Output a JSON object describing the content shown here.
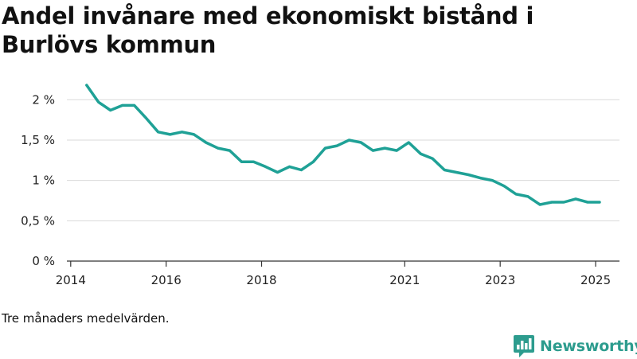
{
  "title": "Andel invånare med ekonomiskt bistånd i Burlövs kommun",
  "footnote": "Tre månaders medelvärden.",
  "brand": {
    "name": "Newsworthy",
    "icon": "bar-chart-logo-icon",
    "color": "#2d9c8e"
  },
  "chart_data": {
    "type": "line",
    "xlabel": "",
    "ylabel": "",
    "ylim": [
      0,
      2.2
    ],
    "y_ticks": [
      0,
      0.5,
      1,
      1.5,
      2
    ],
    "y_tick_labels": [
      "0 %",
      "0,5 %",
      "1 %",
      "1,5 %",
      "2 %"
    ],
    "x_ticks": [
      2014,
      2016,
      2018,
      2021,
      2023,
      2025
    ],
    "x_tick_labels": [
      "2014",
      "2016",
      "2018",
      "2021",
      "2023",
      "2025"
    ],
    "grid": true,
    "line_color": "#1fa196",
    "series": [
      {
        "x": [
          2014.333,
          2014.583,
          2014.833,
          2015.083,
          2015.333,
          2015.583,
          2015.833,
          2016.083,
          2016.333,
          2016.583,
          2016.833,
          2017.083,
          2017.333,
          2017.583,
          2017.833,
          2018.083,
          2018.333,
          2018.583,
          2018.833,
          2019.083,
          2019.333,
          2019.583,
          2019.833,
          2020.083,
          2020.333,
          2020.583,
          2020.833,
          2021.083,
          2021.333,
          2021.583,
          2021.833,
          2022.083,
          2022.333,
          2022.583,
          2022.833,
          2023.083,
          2023.333,
          2023.583,
          2023.833,
          2024.083,
          2024.333,
          2024.583,
          2024.833,
          2025.083
        ],
        "y": [
          2.18,
          1.97,
          1.87,
          1.93,
          1.93,
          1.77,
          1.6,
          1.57,
          1.6,
          1.57,
          1.47,
          1.4,
          1.37,
          1.23,
          1.23,
          1.17,
          1.1,
          1.17,
          1.13,
          1.23,
          1.4,
          1.43,
          1.5,
          1.47,
          1.37,
          1.4,
          1.37,
          1.47,
          1.33,
          1.27,
          1.13,
          1.1,
          1.07,
          1.03,
          1.0,
          0.93,
          0.83,
          0.8,
          0.7,
          0.73,
          0.73,
          0.77,
          0.73,
          0.73
        ]
      }
    ]
  }
}
